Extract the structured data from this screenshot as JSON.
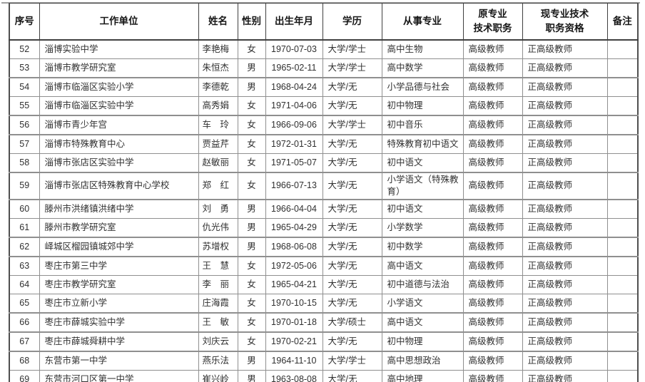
{
  "colors": {
    "inner_border": "#8f8f8f",
    "outer_border": "#4f4f4f",
    "header_text": "#161616",
    "body_text": "#303030",
    "background": "#ffffff"
  },
  "table": {
    "columns": [
      {
        "key": "index",
        "label": "序号"
      },
      {
        "key": "work_unit",
        "label": "工作单位"
      },
      {
        "key": "name",
        "label": "姓名"
      },
      {
        "key": "gender",
        "label": "性别"
      },
      {
        "key": "birth_date",
        "label": "出生年月"
      },
      {
        "key": "education",
        "label": "学历"
      },
      {
        "key": "profession",
        "label": "从事专业"
      },
      {
        "key": "original_title",
        "label": "原专业\n技术职务"
      },
      {
        "key": "current_title",
        "label": "现专业技术\n职务资格"
      },
      {
        "key": "remarks",
        "label": "备注"
      }
    ],
    "rows": [
      {
        "index": "52",
        "work_unit": "淄博实验中学",
        "name": "李艳梅",
        "gender": "女",
        "birth_date": "1970-07-03",
        "education": "大学/学士",
        "profession": "高中生物",
        "original_title": "高级教师",
        "current_title": "正高级教师",
        "remarks": ""
      },
      {
        "index": "53",
        "work_unit": "淄博市教学研究室",
        "name": "朱恒杰",
        "gender": "男",
        "birth_date": "1965-02-11",
        "education": "大学/学士",
        "profession": "高中数学",
        "original_title": "高级教师",
        "current_title": "正高级教师",
        "remarks": ""
      },
      {
        "index": "54",
        "work_unit": "淄博市临淄区实验小学",
        "name": "李德乾",
        "gender": "男",
        "birth_date": "1968-04-24",
        "education": "大学/无",
        "profession": "小学品德与社会",
        "original_title": "高级教师",
        "current_title": "正高级教师",
        "remarks": ""
      },
      {
        "index": "55",
        "work_unit": "淄博市临淄区实验中学",
        "name": "高秀娟",
        "gender": "女",
        "birth_date": "1971-04-06",
        "education": "大学/无",
        "profession": "初中物理",
        "original_title": "高级教师",
        "current_title": "正高级教师",
        "remarks": ""
      },
      {
        "index": "56",
        "work_unit": "淄博市青少年宫",
        "name": "车　玲",
        "gender": "女",
        "birth_date": "1966-09-06",
        "education": "大学/学士",
        "profession": "初中音乐",
        "original_title": "高级教师",
        "current_title": "正高级教师",
        "remarks": ""
      },
      {
        "index": "57",
        "work_unit": "淄博市特殊教育中心",
        "name": "贾益芹",
        "gender": "女",
        "birth_date": "1972-01-31",
        "education": "大学/无",
        "profession": "特殊教育初中语文",
        "original_title": "高级教师",
        "current_title": "正高级教师",
        "remarks": ""
      },
      {
        "index": "58",
        "work_unit": "淄博市张店区实验中学",
        "name": "赵敏丽",
        "gender": "女",
        "birth_date": "1971-05-07",
        "education": "大学/无",
        "profession": "初中语文",
        "original_title": "高级教师",
        "current_title": "正高级教师",
        "remarks": ""
      },
      {
        "index": "59",
        "work_unit": "淄博市张店区特殊教育中心学校",
        "name": "郑　红",
        "gender": "女",
        "birth_date": "1966-07-13",
        "education": "大学/无",
        "profession": "小学语文（特殊教育）",
        "original_title": "高级教师",
        "current_title": "正高级教师",
        "remarks": ""
      },
      {
        "index": "60",
        "work_unit": "滕州市洪绪镇洪绪中学",
        "name": "刘　勇",
        "gender": "男",
        "birth_date": "1966-04-04",
        "education": "大学/无",
        "profession": "初中语文",
        "original_title": "高级教师",
        "current_title": "正高级教师",
        "remarks": ""
      },
      {
        "index": "61",
        "work_unit": "滕州市教学研究室",
        "name": "仇光伟",
        "gender": "男",
        "birth_date": "1965-04-29",
        "education": "大学/无",
        "profession": "小学数学",
        "original_title": "高级教师",
        "current_title": "正高级教师",
        "remarks": ""
      },
      {
        "index": "62",
        "work_unit": "峄城区榴园镇城郊中学",
        "name": "苏增权",
        "gender": "男",
        "birth_date": "1968-06-08",
        "education": "大学/无",
        "profession": "初中数学",
        "original_title": "高级教师",
        "current_title": "正高级教师",
        "remarks": ""
      },
      {
        "index": "63",
        "work_unit": "枣庄市第三中学",
        "name": "王　慧",
        "gender": "女",
        "birth_date": "1972-05-06",
        "education": "大学/无",
        "profession": "高中语文",
        "original_title": "高级教师",
        "current_title": "正高级教师",
        "remarks": ""
      },
      {
        "index": "64",
        "work_unit": "枣庄市教学研究室",
        "name": "李　丽",
        "gender": "女",
        "birth_date": "1965-04-21",
        "education": "大学/无",
        "profession": "初中道德与法治",
        "original_title": "高级教师",
        "current_title": "正高级教师",
        "remarks": ""
      },
      {
        "index": "65",
        "work_unit": "枣庄市立新小学",
        "name": "庄海霞",
        "gender": "女",
        "birth_date": "1970-10-15",
        "education": "大学/无",
        "profession": "小学语文",
        "original_title": "高级教师",
        "current_title": "正高级教师",
        "remarks": ""
      },
      {
        "index": "66",
        "work_unit": "枣庄市薛城实验中学",
        "name": "王　敏",
        "gender": "女",
        "birth_date": "1970-01-18",
        "education": "大学/硕士",
        "profession": "高中语文",
        "original_title": "高级教师",
        "current_title": "正高级教师",
        "remarks": ""
      },
      {
        "index": "67",
        "work_unit": "枣庄市薛城舜耕中学",
        "name": "刘庆云",
        "gender": "女",
        "birth_date": "1970-02-21",
        "education": "大学/无",
        "profession": "初中物理",
        "original_title": "高级教师",
        "current_title": "正高级教师",
        "remarks": ""
      },
      {
        "index": "68",
        "work_unit": "东营市第一中学",
        "name": "燕乐法",
        "gender": "男",
        "birth_date": "1964-11-10",
        "education": "大学/学士",
        "profession": "高中思想政治",
        "original_title": "高级教师",
        "current_title": "正高级教师",
        "remarks": ""
      },
      {
        "index": "69",
        "work_unit": "东营市河口区第一中学",
        "name": "崔兴岭",
        "gender": "男",
        "birth_date": "1963-08-08",
        "education": "大学/无",
        "profession": "高中地理",
        "original_title": "高级教师",
        "current_title": "正高级教师",
        "remarks": ""
      }
    ]
  }
}
